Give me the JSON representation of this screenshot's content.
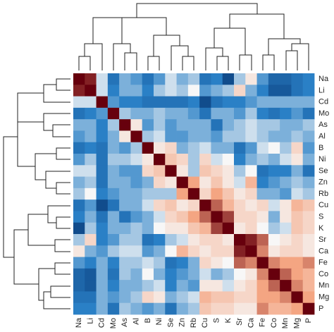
{
  "chart_data": {
    "type": "heatmap",
    "categories": [
      "Na",
      "Li",
      "Cd",
      "Mo",
      "As",
      "Al",
      "B",
      "Ni",
      "Se",
      "Zn",
      "Rb",
      "Cu",
      "S",
      "K",
      "Sr",
      "Ca",
      "Fe",
      "Co",
      "Mn",
      "Mg",
      "P"
    ],
    "zlim": [
      -1,
      1
    ],
    "colorscale": [
      "#0b3f7e",
      "#2a80c6",
      "#f7f7f7",
      "#f4a582",
      "#67000d"
    ],
    "values": [
      [
        1,
        0.9,
        -0.1,
        -0.6,
        -0.3,
        -0.4,
        -0.6,
        -0.4,
        -0.1,
        -0.3,
        -0.2,
        -0.6,
        -0.5,
        -0.9,
        -0.2,
        0.1,
        -0.4,
        -0.7,
        -0.7,
        -0.6,
        -0.5
      ],
      [
        0.9,
        1,
        -0.1,
        -0.5,
        -0.3,
        -0.3,
        -0.5,
        -0.2,
        -0.1,
        -0.2,
        0,
        -0.4,
        -0.3,
        -0.2,
        0.2,
        -0.3,
        -0.5,
        -0.8,
        -0.8,
        -0.6,
        -0.5
      ],
      [
        -0.1,
        -0.1,
        1,
        -0.4,
        -0.5,
        -0.5,
        -0.6,
        -0.6,
        -0.6,
        -0.6,
        -0.5,
        -0.9,
        -0.6,
        -0.5,
        -0.5,
        -0.4,
        -0.3,
        -0.3,
        -0.3,
        -0.3,
        -0.3
      ],
      [
        -0.6,
        -0.5,
        -0.4,
        1,
        -0.2,
        -0.3,
        -0.3,
        -0.2,
        -0.3,
        -0.3,
        -0.4,
        -0.6,
        -0.3,
        -0.3,
        -0.4,
        -0.2,
        -0.5,
        -0.6,
        -0.5,
        -0.4,
        -0.6
      ],
      [
        -0.3,
        -0.3,
        -0.5,
        -0.2,
        1,
        0.1,
        -0.4,
        -0.2,
        -0.4,
        -0.3,
        -0.3,
        -0.3,
        -0.6,
        -0.3,
        -0.2,
        -0.1,
        -0.2,
        -0.2,
        -0.3,
        -0.3,
        -0.2
      ],
      [
        -0.4,
        -0.3,
        -0.5,
        -0.3,
        0.1,
        1,
        -0.2,
        -0.1,
        -0.4,
        -0.4,
        -0.3,
        -0.3,
        -0.4,
        -0.2,
        -0.2,
        -0.1,
        -0.2,
        -0.3,
        -0.3,
        -0.2,
        -0.3
      ],
      [
        -0.6,
        -0.5,
        -0.6,
        -0.3,
        -0.4,
        -0.2,
        1,
        0.1,
        0.2,
        -0.3,
        -0.2,
        -0.1,
        -0.3,
        -0.3,
        -0.6,
        -0.4,
        -0.1,
        0,
        -0.2,
        0.2,
        -0.4
      ],
      [
        -0.4,
        -0.2,
        -0.6,
        -0.2,
        -0.2,
        -0.1,
        0.1,
        1,
        0.3,
        0.2,
        -0.2,
        0.2,
        -0.1,
        0,
        -0.5,
        -0.3,
        -0.2,
        -0.3,
        -0.1,
        0.1,
        -0.3
      ],
      [
        -0.1,
        -0.1,
        -0.6,
        -0.3,
        -0.4,
        -0.4,
        0.2,
        0.3,
        1,
        0.1,
        -0.2,
        0.3,
        0.2,
        0.1,
        -0.2,
        0,
        -0.6,
        -0.5,
        -0.5,
        -0.3,
        -0.6
      ],
      [
        -0.3,
        -0.2,
        -0.6,
        -0.3,
        -0.3,
        -0.4,
        -0.3,
        0.2,
        0.1,
        1,
        0.5,
        0.1,
        0.3,
        0.1,
        -0.1,
        0.4,
        -0.5,
        -0.4,
        -0.3,
        -0.2,
        -0.3
      ],
      [
        -0.2,
        0,
        -0.5,
        -0.4,
        -0.3,
        -0.3,
        -0.2,
        -0.2,
        -0.2,
        0.5,
        1,
        0.2,
        0.5,
        0.3,
        0.1,
        0.2,
        -0.3,
        -0.3,
        -0.4,
        -0.1,
        -0.2
      ],
      [
        -0.6,
        -0.4,
        -0.9,
        -0.6,
        -0.3,
        -0.3,
        -0.1,
        0.2,
        0.3,
        0.1,
        0.2,
        1,
        0.7,
        0.4,
        0.2,
        0.1,
        0.2,
        -0.1,
        0.1,
        0.4,
        0.3
      ],
      [
        -0.5,
        -0.3,
        -0.6,
        -0.3,
        -0.6,
        -0.4,
        -0.3,
        -0.1,
        0.2,
        0.3,
        0.5,
        0.7,
        1,
        0.8,
        0.2,
        0.2,
        0.1,
        -0.3,
        0.1,
        0.3,
        0.2
      ],
      [
        -0.9,
        -0.2,
        -0.5,
        -0.3,
        -0.3,
        -0.2,
        -0.3,
        0,
        0.1,
        0.1,
        0.3,
        0.4,
        0.8,
        1,
        0.1,
        0.2,
        0,
        -0.2,
        -0.1,
        0.3,
        0.2
      ],
      [
        -0.2,
        0.2,
        -0.5,
        -0.4,
        -0.2,
        -0.2,
        -0.6,
        -0.5,
        -0.2,
        -0.1,
        0.1,
        0.2,
        0.2,
        0.1,
        1,
        0.9,
        0.7,
        0,
        0.1,
        0.2,
        0.1
      ],
      [
        0.1,
        -0.3,
        -0.4,
        -0.2,
        -0.1,
        -0.1,
        -0.4,
        -0.3,
        0,
        0.4,
        0.2,
        0.1,
        0.2,
        0.2,
        0.9,
        1,
        0.6,
        0.1,
        0.2,
        0.2,
        0.1
      ],
      [
        -0.4,
        -0.5,
        -0.3,
        -0.5,
        -0.2,
        -0.2,
        -0.1,
        -0.2,
        -0.6,
        -0.5,
        -0.3,
        0.2,
        0.1,
        0,
        0.7,
        0.6,
        1,
        0.6,
        0.5,
        0.5,
        0.6
      ],
      [
        -0.7,
        -0.8,
        -0.3,
        -0.6,
        -0.2,
        -0.3,
        0,
        -0.3,
        -0.5,
        -0.4,
        -0.3,
        -0.1,
        -0.3,
        -0.2,
        0,
        0.1,
        0.6,
        1,
        0.7,
        0.5,
        0.4
      ],
      [
        -0.7,
        -0.8,
        -0.3,
        -0.5,
        -0.3,
        -0.3,
        -0.2,
        -0.1,
        -0.5,
        -0.3,
        -0.4,
        0.1,
        0.1,
        -0.1,
        0.1,
        0.2,
        0.5,
        0.7,
        1,
        0.6,
        0.4
      ],
      [
        -0.6,
        -0.6,
        -0.3,
        -0.4,
        -0.3,
        -0.2,
        0.2,
        0.1,
        -0.3,
        -0.2,
        -0.1,
        0.4,
        0.3,
        0.3,
        0.2,
        0.2,
        0.5,
        0.5,
        0.6,
        1,
        0.5
      ],
      [
        -0.5,
        -0.5,
        -0.3,
        -0.6,
        -0.2,
        -0.3,
        -0.4,
        -0.3,
        -0.6,
        -0.3,
        -0.2,
        0.3,
        0.2,
        0.2,
        0.1,
        0.1,
        0.6,
        0.4,
        0.4,
        0.5,
        1
      ]
    ]
  }
}
